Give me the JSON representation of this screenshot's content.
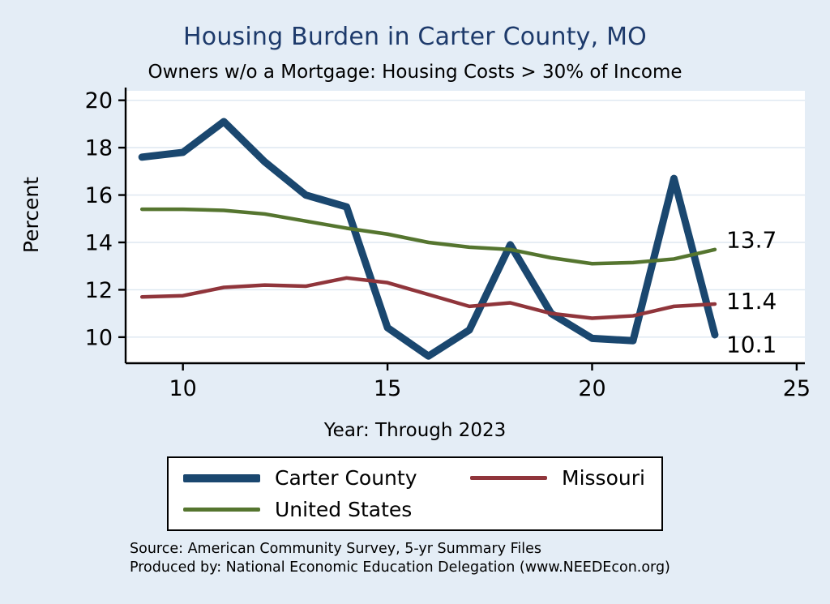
{
  "title": "Housing Burden in Carter County, MO",
  "subtitle": "Owners w/o a Mortgage: Housing Costs > 30% of Income",
  "xlabel": "Year: Through 2023",
  "ylabel": "Percent",
  "source_line1": "Source: American Community Survey, 5-yr Summary Files",
  "source_line2": "Produced by: National Economic Education Delegation (www.NEEDEcon.org)",
  "colors": {
    "background": "#e4edf6",
    "plot_background": "#ffffff",
    "grid": "#dde7f0",
    "axis": "#000000",
    "title": "#1d3a6b",
    "carter_county": "#1a476f",
    "missouri": "#90353b",
    "united_states": "#55752f"
  },
  "chart_data": {
    "type": "line",
    "title": "Housing Burden in Carter County, MO",
    "subtitle": "Owners w/o a Mortgage: Housing Costs > 30% of Income",
    "xlabel": "Year: Through 2023",
    "ylabel": "Percent",
    "x": [
      9,
      10,
      11,
      12,
      13,
      14,
      15,
      16,
      17,
      18,
      19,
      20,
      21,
      22,
      23
    ],
    "xticks": [
      10,
      15,
      20,
      25
    ],
    "yticks": [
      10,
      12,
      14,
      16,
      18,
      20
    ],
    "xlim": [
      8.6,
      25.2
    ],
    "ylim": [
      8.9,
      20.4
    ],
    "grid": true,
    "legend_position": "bottom",
    "series": [
      {
        "name": "Carter County",
        "color": "#1a476f",
        "width": 9,
        "values": [
          17.6,
          17.8,
          19.1,
          17.4,
          16.0,
          15.5,
          10.4,
          9.2,
          10.3,
          13.9,
          11.0,
          9.95,
          9.85,
          16.7,
          10.1
        ],
        "end_label": "10.1",
        "end_label_dy": 12
      },
      {
        "name": "Missouri",
        "color": "#90353b",
        "width": 4.5,
        "values": [
          11.7,
          11.75,
          12.1,
          12.2,
          12.15,
          12.5,
          12.3,
          11.8,
          11.3,
          11.45,
          11.0,
          10.8,
          10.9,
          11.3,
          11.4
        ],
        "end_label": "11.4",
        "end_label_dy": -4
      },
      {
        "name": "United States",
        "color": "#55752f",
        "width": 4.5,
        "values": [
          15.4,
          15.4,
          15.35,
          15.2,
          14.9,
          14.6,
          14.35,
          14.0,
          13.8,
          13.7,
          13.35,
          13.1,
          13.15,
          13.3,
          13.7
        ],
        "end_label": "13.7",
        "end_label_dy": -12
      }
    ]
  }
}
